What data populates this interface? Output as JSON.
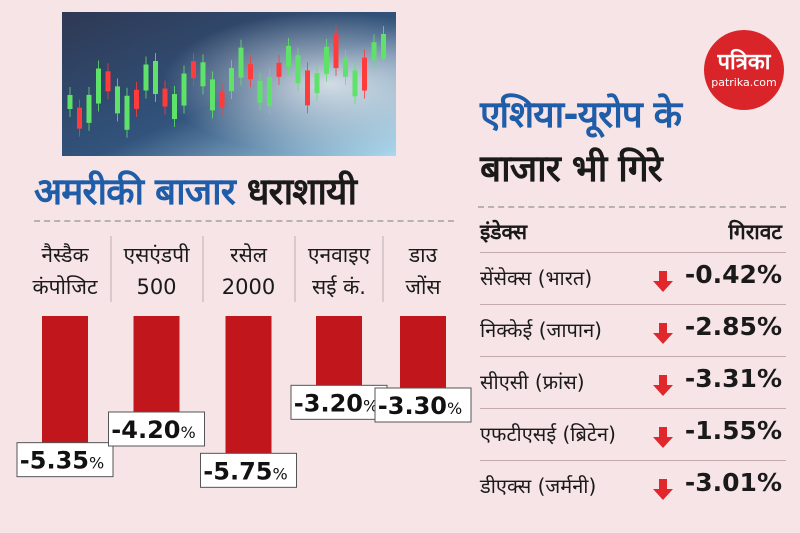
{
  "logo": {
    "name": "पत्रिका",
    "site": "patrika.com"
  },
  "left_title": {
    "part1": "अमरीकी बाजार",
    "part2": "धराशायी"
  },
  "right_title": {
    "line1": "एशिया-यूरोप के",
    "line2": "बाजार भी गिरे"
  },
  "table": {
    "headers": {
      "index": "इंडेक्स",
      "decline": "गिरावट"
    },
    "rows": [
      {
        "name": "सेंसेक्स (भारत)",
        "value": "-0.42%"
      },
      {
        "name": "निक्केई (जापान)",
        "value": "-2.85%"
      },
      {
        "name": "सीएसी (फ्रांस)",
        "value": "-3.31%"
      },
      {
        "name": "एफटीएसई (ब्रिटेन)",
        "value": "-1.55%"
      },
      {
        "name": "डीएक्स (जर्मनी)",
        "value": "-3.01%"
      }
    ]
  },
  "colors": {
    "bar": "#c0161c",
    "accent_blue": "#1f5da8",
    "arrow": "#e0272c",
    "background": "#f6e4e6"
  },
  "chart_data": {
    "type": "bar",
    "title": "अमरीकी बाजार धराशायी",
    "categories": [
      [
        "नैस्डैक",
        "कंपोजिट"
      ],
      [
        "एसएंडपी",
        "500"
      ],
      [
        "रसेल",
        "2000"
      ],
      [
        "एनवाइए",
        "सई कं."
      ],
      [
        "डाउ",
        "जोंस"
      ]
    ],
    "values": [
      -5.35,
      -4.2,
      -5.75,
      -3.2,
      -3.3
    ],
    "labels": [
      "-5.35",
      "-4.20",
      "-5.75",
      "-3.20",
      "-3.30"
    ],
    "unit": "%",
    "ylim": [
      -6,
      0
    ]
  }
}
